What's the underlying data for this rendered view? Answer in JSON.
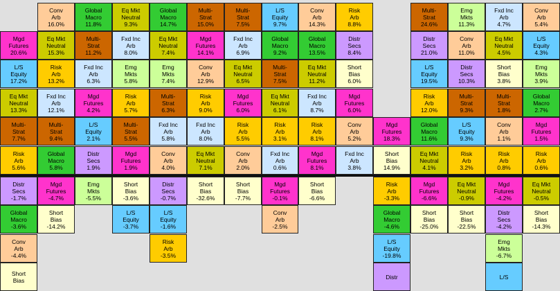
{
  "chart_data": {
    "type": "table",
    "title": "",
    "colors": {
      "Conv Arb": "#ffcc99",
      "Global Macro": "#33cc33",
      "Eq Mkt Neutral": "#cccc00",
      "Multi-Strat": "#cc6600",
      "L/S Equity": "#66ccff",
      "Risk Arb": "#ffcc00",
      "Mgd Futures": "#ff33cc",
      "Fxd Inc Arb": "#cce6ff",
      "Emg Mkts": "#ccff99",
      "Distr Secs": "#cc99ff",
      "Short Bias": "#ffffcc"
    },
    "columns": [
      {
        "above": [
          [
            "Risk Arb",
            "5.6%"
          ],
          [
            "Multi-Strat",
            "7.7%"
          ],
          [
            "Eq Mkt Neutral",
            "13.3%"
          ],
          [
            "L/S Equity",
            "17.2%"
          ],
          [
            "Mgd Futures",
            "20.6%"
          ]
        ],
        "below": [
          [
            "Distr Secs",
            "-1.7%"
          ],
          [
            "Global Macro",
            "-3.6%"
          ],
          [
            "Conv Arb",
            "-4.4%"
          ],
          [
            "Short Bias",
            ""
          ]
        ]
      },
      {
        "above": [
          [
            "Global Macro",
            "5.8%"
          ],
          [
            "Multi-Strat",
            "9.4%"
          ],
          [
            "Fxd Inc Arb",
            "12.1%"
          ],
          [
            "Risk Arb",
            "13.2%"
          ],
          [
            "Eq Mkt Neutral",
            "15.3%"
          ],
          [
            "Conv Arb",
            "16.0%"
          ]
        ],
        "below": [
          [
            "Mgd Futures",
            "-4.7%"
          ],
          [
            "Short Bias",
            "-14.2%"
          ]
        ]
      },
      {
        "above": [
          [
            "Distr Secs",
            "1.9%"
          ],
          [
            "L/S Equity",
            "2.1%"
          ],
          [
            "Mgd Futures",
            "4.2%"
          ],
          [
            "Fxd Inc Arb",
            "6.3%"
          ],
          [
            "Multi-Strat",
            "11.2%"
          ],
          [
            "Global Macro",
            "11.8%"
          ]
        ],
        "below": [
          [
            "Emg Mkts",
            "-5.5%"
          ]
        ]
      },
      {
        "above": [
          [
            "Mgd Futures",
            "1.9%"
          ],
          [
            "Multi-Strat",
            "5.5%"
          ],
          [
            "Risk Arb",
            "5.7%"
          ],
          [
            "Emg Mkts",
            "5.8%"
          ],
          [
            "Fxd Inc Arb",
            "8.0%"
          ],
          [
            "Eq Mkt Neutral",
            "9.3%"
          ]
        ],
        "below": [
          [
            "Short Bias",
            "-3.6%"
          ],
          [
            "L/S Equity",
            "-3.7%"
          ]
        ]
      },
      {
        "above": [
          [
            "Conv Arb",
            "4.0%"
          ],
          [
            "Fxd Inc Arb",
            "5.8%"
          ],
          [
            "Multi-Strat",
            "6.3%"
          ],
          [
            "Emg Mkts",
            "7.4%"
          ],
          [
            "Eq Mkt Neutral",
            "7.4%"
          ],
          [
            "Global Macro",
            "14.7%"
          ]
        ],
        "below": [
          [
            "Distr Secs",
            "-0.7%"
          ],
          [
            "L/S Equity",
            "-1.6%"
          ],
          [
            "Risk Arb",
            "-3.5%"
          ]
        ]
      },
      {
        "above": [
          [
            "Eq Mkt Neutral",
            "7.1%"
          ],
          [
            "Fxd Inc Arb",
            "8.0%"
          ],
          [
            "Risk Arb",
            "9.0%"
          ],
          [
            "Conv Arb",
            "12.9%"
          ],
          [
            "Mgd Futures",
            "14.1%"
          ],
          [
            "Multi-Strat",
            "15.0%"
          ]
        ],
        "below": [
          [
            "Short Bias",
            "-32.6%"
          ]
        ]
      },
      {
        "above": [
          [
            "Conv Arb",
            "2.0%"
          ],
          [
            "Risk Arb",
            "5.5%"
          ],
          [
            "Mgd Futures",
            "6.0%"
          ],
          [
            "Eq Mkt Neutral",
            "6.5%"
          ],
          [
            "Fxd Inc Arb",
            "6.9%"
          ],
          [
            "Multi-Strat",
            "7.5%"
          ]
        ],
        "below": [
          [
            "Short Bias",
            "-7.7%"
          ]
        ]
      },
      {
        "above": [
          [
            "Fxd Inc Arb",
            "0.6%"
          ],
          [
            "Risk Arb",
            "3.1%"
          ],
          [
            "Eq Mkt Neutral",
            "6.1%"
          ],
          [
            "Multi-Strat",
            "7.5%"
          ],
          [
            "Global Macro",
            "9.2%"
          ],
          [
            "L/S Equity",
            "9.7%"
          ]
        ],
        "below": [
          [
            "Mgd Futures",
            "-0.1%"
          ],
          [
            "Conv Arb",
            "-2.5%"
          ]
        ]
      },
      {
        "above": [
          [
            "Mgd Futures",
            "8.1%"
          ],
          [
            "Risk Arb",
            "8.1%"
          ],
          [
            "Fxd Inc Arb",
            "8.7%"
          ],
          [
            "Eq Mkt Neutral",
            "11.2%"
          ],
          [
            "Global Macro",
            "13.5%"
          ],
          [
            "Conv Arb",
            "14.3%"
          ]
        ],
        "below": [
          [
            "Short Bias",
            "-6.6%"
          ]
        ]
      },
      {
        "above": [
          [
            "Fxd Inc Arb",
            "3.8%"
          ],
          [
            "Conv Arb",
            "5.2%"
          ],
          [
            "Mgd Futures",
            "6.0%"
          ],
          [
            "Short Bias",
            "6.0%"
          ],
          [
            "Distr Secs",
            "8.4%"
          ],
          [
            "Risk Arb",
            "8.8%"
          ]
        ],
        "below": []
      },
      {
        "above": [
          [
            "Short Bias",
            "14.9%"
          ],
          [
            "Mgd Futures",
            "18.3%"
          ]
        ],
        "below": [
          [
            "Risk Arb",
            "-3.3%"
          ],
          [
            "Global Macro",
            "-4.6%"
          ],
          [
            "L/S Equity",
            "-19.8%"
          ],
          [
            "Distr",
            ""
          ]
        ]
      },
      {
        "above": [
          [
            "Eq Mkt Neutral",
            "4.1%"
          ],
          [
            "Global Macro",
            "11.6%"
          ],
          [
            "Risk Arb",
            "12.0%"
          ],
          [
            "L/S Equity",
            "19.5%"
          ],
          [
            "Distr Secs",
            "21.0%"
          ],
          [
            "Multi-Strat",
            "24.6%"
          ]
        ],
        "below": [
          [
            "Mgd Futures",
            "-6.6%"
          ],
          [
            "Short Bias",
            "-25.0%"
          ]
        ]
      },
      {
        "above": [
          [
            "Risk Arb",
            "3.2%"
          ],
          [
            "L/S Equity",
            "9.3%"
          ],
          [
            "Multi-Strat",
            "9.3%"
          ],
          [
            "Distr Secs",
            "10.3%"
          ],
          [
            "Conv Arb",
            "11.0%"
          ],
          [
            "Emg Mkts",
            "11.3%"
          ]
        ],
        "below": [
          [
            "Eq Mkt Neutral",
            "-0.9%"
          ],
          [
            "Short Bias",
            "-22.5%"
          ]
        ]
      },
      {
        "above": [
          [
            "Risk Arb",
            "0.8%"
          ],
          [
            "Conv Arb",
            "1.1%"
          ],
          [
            "Multi-Strat",
            "1.8%"
          ],
          [
            "Short Bias",
            "3.8%"
          ],
          [
            "Eq Mkt Neutral",
            "4.5%"
          ],
          [
            "Fxd Inc Arb",
            "4.7%"
          ]
        ],
        "below": [
          [
            "Mgd Futures",
            "-4.2%"
          ],
          [
            "Distr Secs",
            "-4.2%"
          ],
          [
            "Emg Mkts",
            "-6.7%"
          ],
          [
            "L/S",
            ""
          ]
        ]
      },
      {
        "above": [
          [
            "Risk Arb",
            "0.6%"
          ],
          [
            "Mgd Futures",
            "1.5%"
          ],
          [
            "Global Macro",
            "2.7%"
          ],
          [
            "Emg Mkts",
            "3.9%"
          ],
          [
            "L/S Equity",
            "4.3%"
          ],
          [
            "Conv Arb",
            "5.4%"
          ]
        ],
        "below": [
          [
            "Eq Mkt Neutral",
            "-0.5%"
          ],
          [
            "Short Bias",
            "-14.3%"
          ]
        ]
      }
    ]
  }
}
